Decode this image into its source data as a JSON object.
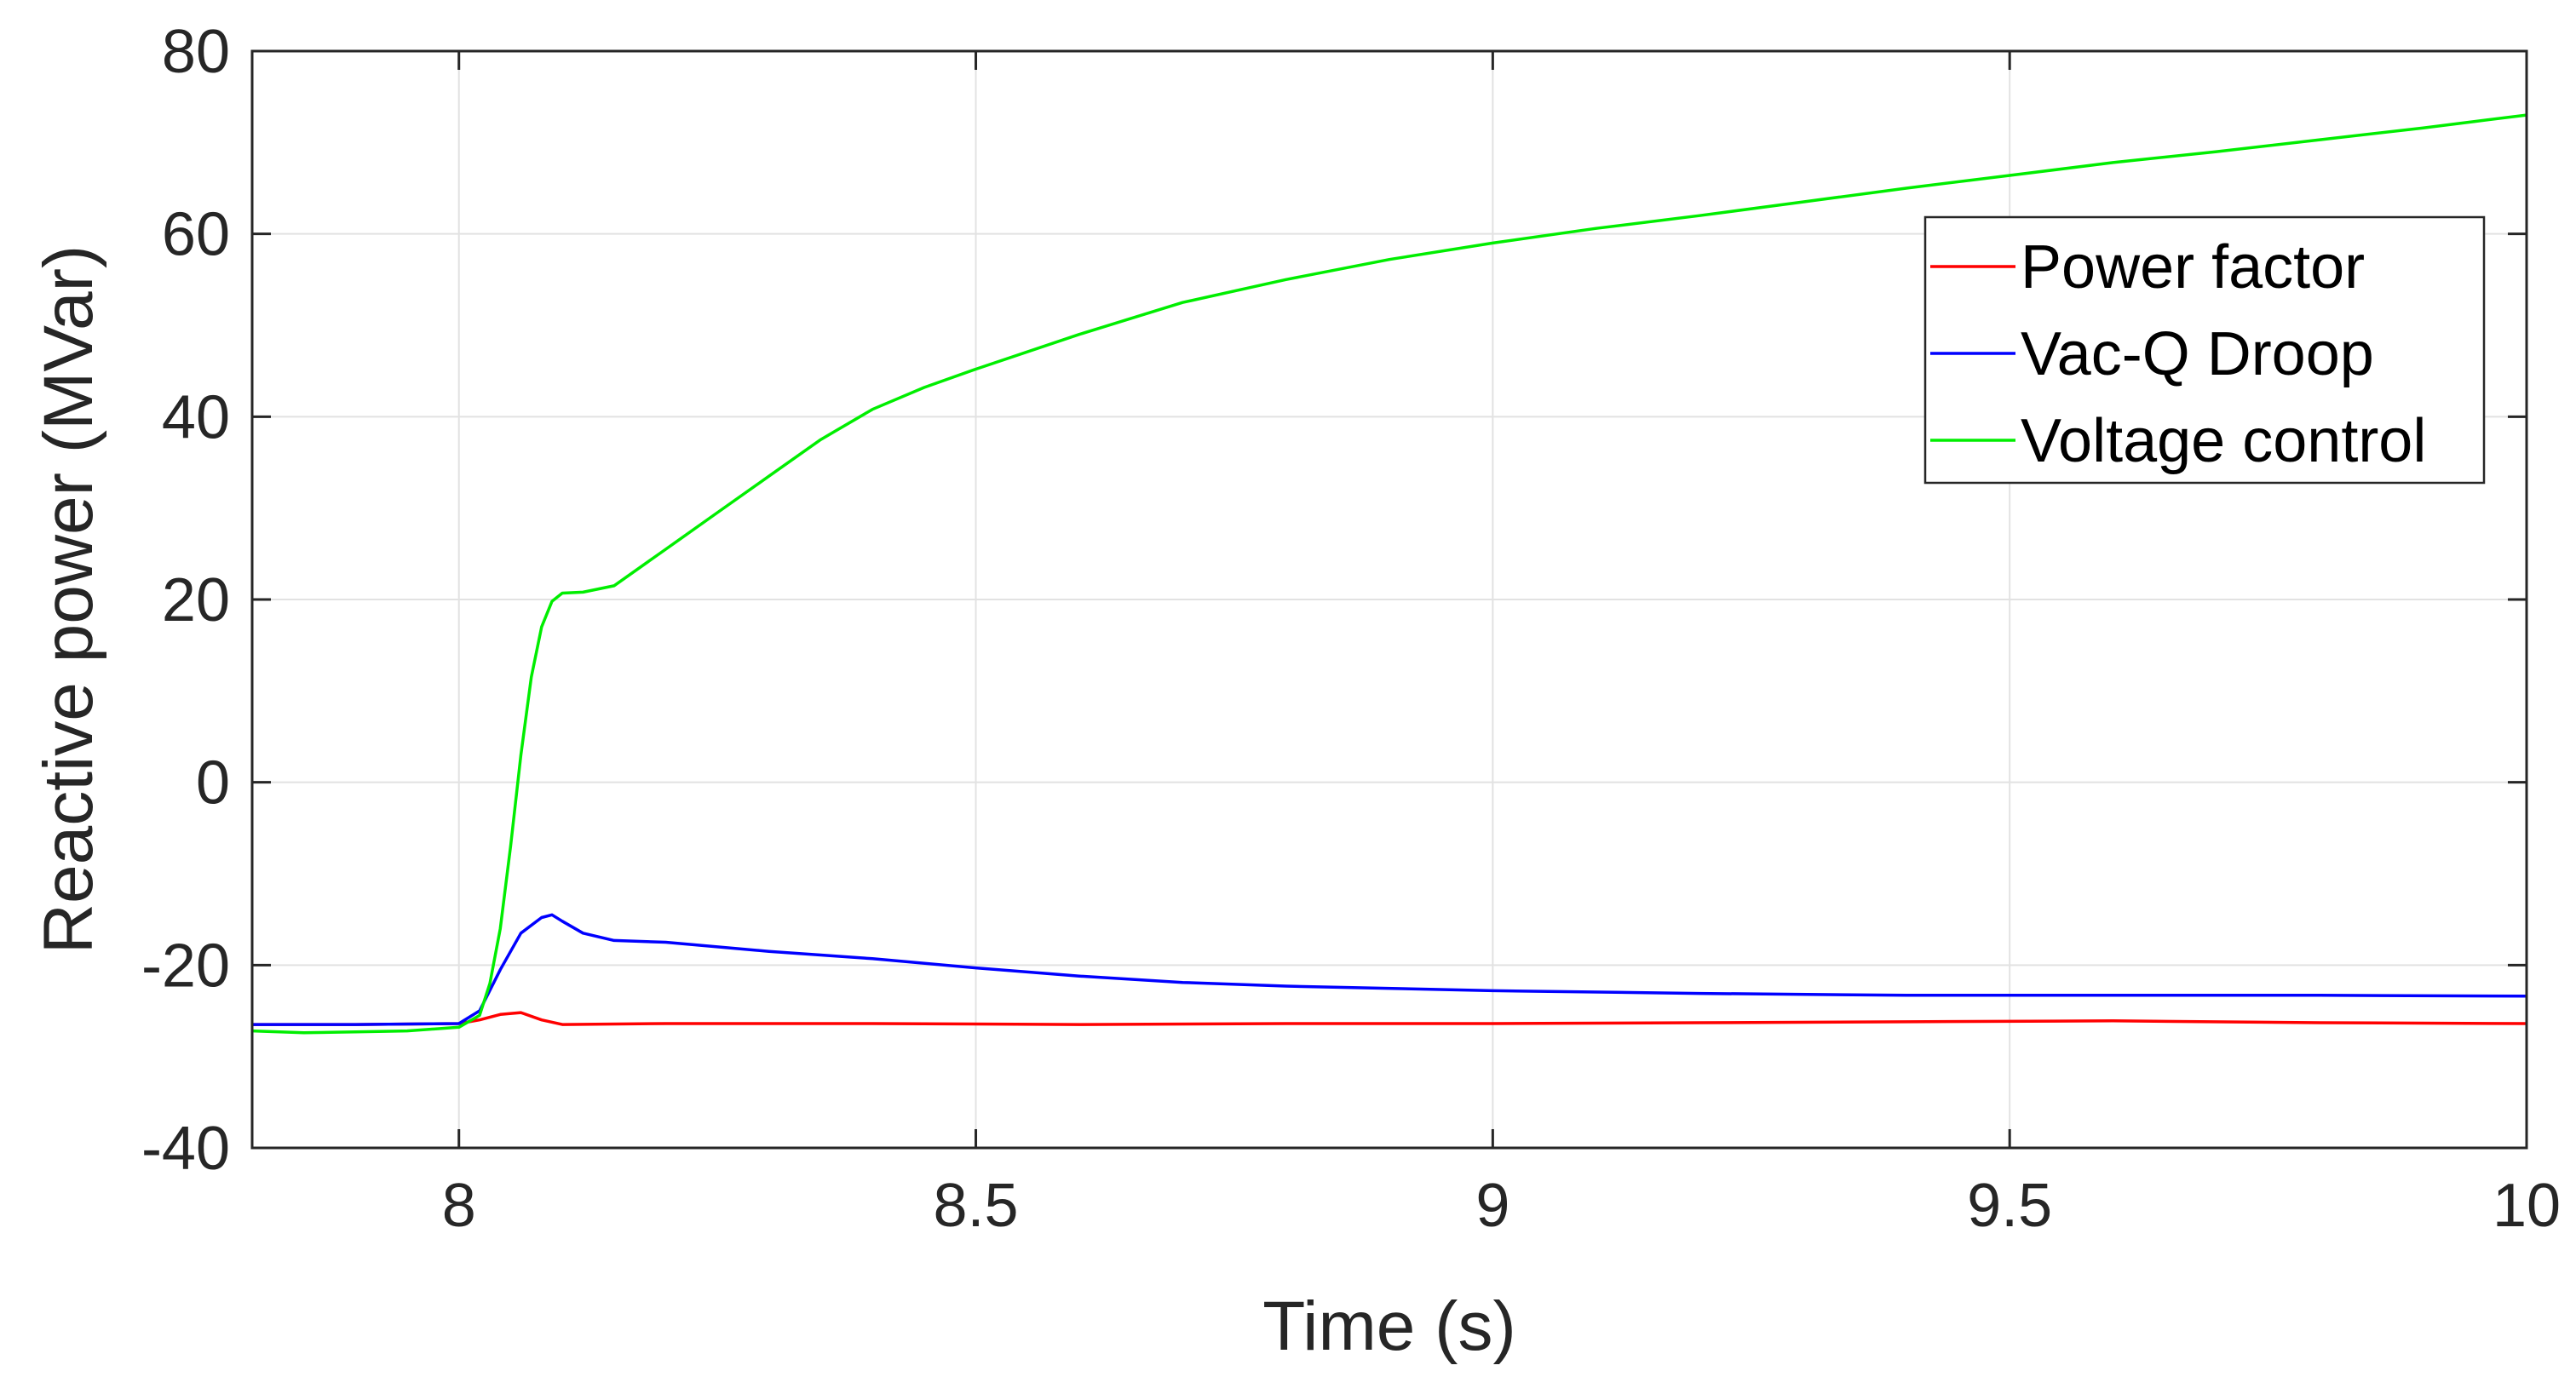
{
  "chart_data": {
    "type": "line",
    "title": "",
    "xlabel": "Time (s)",
    "ylabel": "Reactive power (MVar)",
    "xlim": [
      7.8,
      10
    ],
    "ylim": [
      -40,
      80
    ],
    "xticks": [
      8,
      8.5,
      9,
      9.5,
      10
    ],
    "xtick_labels": [
      "8",
      "8.5",
      "9",
      "9.5",
      "10"
    ],
    "yticks": [
      -40,
      -20,
      0,
      20,
      40,
      60,
      80
    ],
    "ytick_labels": [
      "-40",
      "-20",
      "0",
      "20",
      "40",
      "60",
      "80"
    ],
    "grid": true,
    "legend_position": "top-right",
    "series": [
      {
        "name": "Power factor",
        "color": "#ff0000",
        "x": [
          7.8,
          7.9,
          8.0,
          8.02,
          8.04,
          8.06,
          8.08,
          8.1,
          8.2,
          8.4,
          8.6,
          8.8,
          9.0,
          9.2,
          9.4,
          9.6,
          9.8,
          10.0
        ],
        "y": [
          -26.5,
          -26.5,
          -26.4,
          -26.0,
          -25.4,
          -25.2,
          -26.0,
          -26.5,
          -26.4,
          -26.4,
          -26.5,
          -26.4,
          -26.4,
          -26.3,
          -26.2,
          -26.1,
          -26.3,
          -26.4
        ]
      },
      {
        "name": "Vac-Q Droop",
        "color": "#0000ff",
        "x": [
          7.8,
          7.9,
          8.0,
          8.02,
          8.04,
          8.06,
          8.08,
          8.09,
          8.1,
          8.12,
          8.15,
          8.2,
          8.3,
          8.4,
          8.5,
          8.6,
          8.7,
          8.8,
          9.0,
          9.2,
          9.4,
          9.6,
          9.8,
          10.0
        ],
        "y": [
          -26.5,
          -26.5,
          -26.4,
          -25.0,
          -20.5,
          -16.5,
          -14.8,
          -14.5,
          -15.2,
          -16.5,
          -17.3,
          -17.5,
          -18.5,
          -19.3,
          -20.3,
          -21.2,
          -21.9,
          -22.3,
          -22.8,
          -23.1,
          -23.3,
          -23.3,
          -23.3,
          -23.4
        ]
      },
      {
        "name": "Voltage control",
        "color": "#00ee00",
        "x": [
          7.8,
          7.85,
          7.9,
          7.95,
          8.0,
          8.02,
          8.03,
          8.04,
          8.05,
          8.06,
          8.07,
          8.08,
          8.09,
          8.1,
          8.12,
          8.15,
          8.2,
          8.25,
          8.3,
          8.35,
          8.4,
          8.45,
          8.5,
          8.6,
          8.7,
          8.8,
          8.9,
          9.0,
          9.1,
          9.2,
          9.3,
          9.4,
          9.5,
          9.6,
          9.7,
          9.8,
          9.9,
          9.95,
          10.0
        ],
        "y": [
          -27.2,
          -27.4,
          -27.3,
          -27.2,
          -26.8,
          -25.5,
          -22.0,
          -16.0,
          -7.0,
          3.0,
          11.5,
          17.0,
          19.8,
          20.7,
          20.8,
          21.5,
          25.5,
          29.5,
          33.5,
          37.5,
          40.8,
          43.2,
          45.2,
          49.0,
          52.5,
          55.0,
          57.2,
          59.0,
          60.6,
          62.0,
          63.5,
          65.0,
          66.4,
          67.8,
          69.0,
          70.3,
          71.6,
          72.3,
          73.0
        ]
      }
    ]
  }
}
